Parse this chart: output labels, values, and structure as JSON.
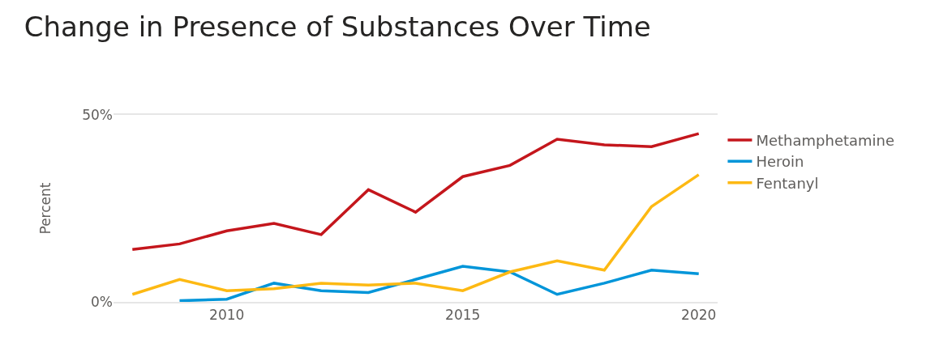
{
  "chart_data": {
    "type": "line",
    "title": "Change in Presence of Substances Over Time",
    "ylabel": "Percent",
    "x": [
      2008,
      2009,
      2010,
      2011,
      2012,
      2013,
      2014,
      2015,
      2016,
      2017,
      2018,
      2019,
      2020
    ],
    "series": [
      {
        "name": "Methamphetamine",
        "color": "#c4161c",
        "values": [
          14,
          15.5,
          19,
          21,
          18,
          30,
          24,
          33.5,
          36.5,
          43.5,
          42,
          41.5,
          45
        ]
      },
      {
        "name": "Heroin",
        "color": "#0095d9",
        "values": [
          null,
          0.3,
          0.7,
          5,
          3,
          2.5,
          6,
          9.5,
          8,
          2,
          5,
          8.5,
          7.5
        ]
      },
      {
        "name": "Fentanyl",
        "color": "#fdb913",
        "values": [
          2,
          6,
          3,
          3.5,
          5,
          4.5,
          5,
          3,
          8,
          11,
          8.5,
          25.5,
          34
        ]
      }
    ],
    "xlim": [
      2007.6,
      2020.4
    ],
    "xticks": [
      2010,
      2015,
      2020
    ],
    "ylim": [
      0,
      50
    ],
    "yticks": [
      {
        "value": 0,
        "label": "0%"
      },
      {
        "value": 50,
        "label": "50%"
      }
    ],
    "legend": "right",
    "marker": "none",
    "line_style": "solid"
  }
}
